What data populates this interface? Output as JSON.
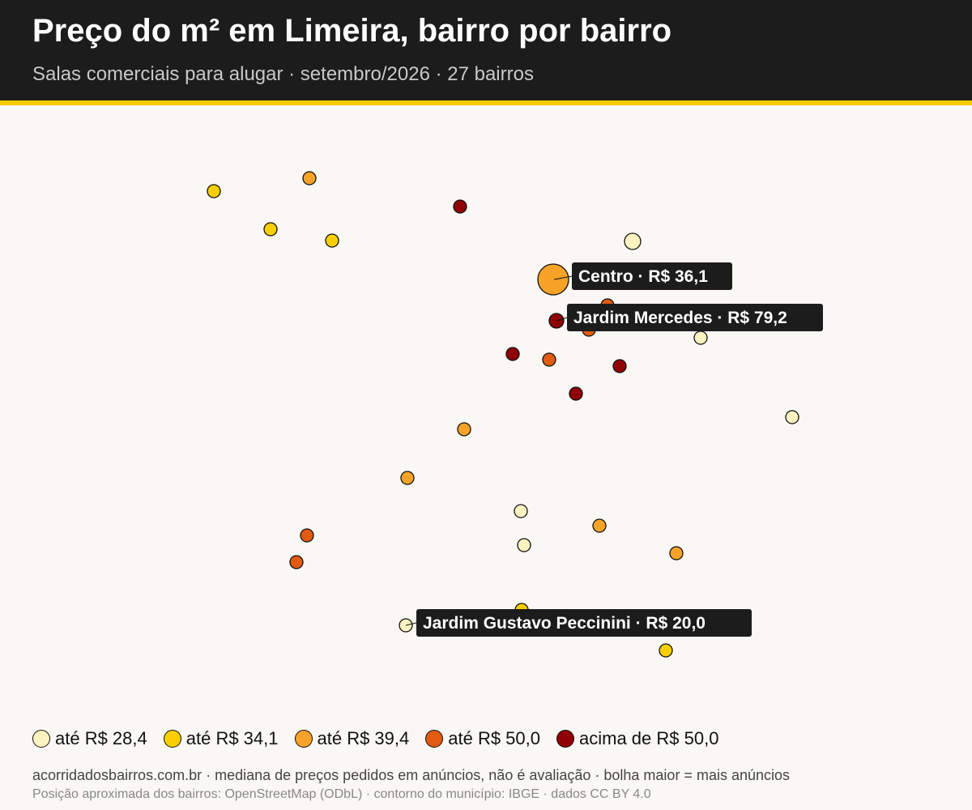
{
  "header": {
    "title": "Preço do m² em Limeira, bairro por bairro",
    "subtitle": "Salas comerciais para alugar · setembro/2026 · 27 bairros"
  },
  "colors": {
    "header_bg": "#1c1c1c",
    "accent": "#f5c800",
    "bin_1": "#fdf3c0",
    "bin_2": "#f7cf00",
    "bin_3": "#f7a228",
    "bin_4": "#e05a12",
    "bin_5": "#8f0007"
  },
  "legend": [
    {
      "label": "até R$ 28,4",
      "color": "#fdf3c0"
    },
    {
      "label": "até R$ 34,1",
      "color": "#f7cf00"
    },
    {
      "label": "até R$ 39,4",
      "color": "#f7a228"
    },
    {
      "label": "até R$ 50,0",
      "color": "#e05a12"
    },
    {
      "label": "acima de R$ 50,0",
      "color": "#8f0007"
    }
  ],
  "labels": [
    {
      "text": "Centro · R$ 36,1"
    },
    {
      "text": "Jardim Mercedes · R$ 79,2"
    },
    {
      "text": "Jardim Gustavo Peccinini · R$ 20,0"
    }
  ],
  "footer": {
    "line1": "acorridadosbairros.com.br · mediana de preços pedidos em anúncios, não é avaliação · bolha maior = mais anúncios",
    "line2": "Posição aproximada dos bairros: OpenStreetMap (ODbL) · contorno do município: IBGE · dados CC BY 4.0"
  }
}
